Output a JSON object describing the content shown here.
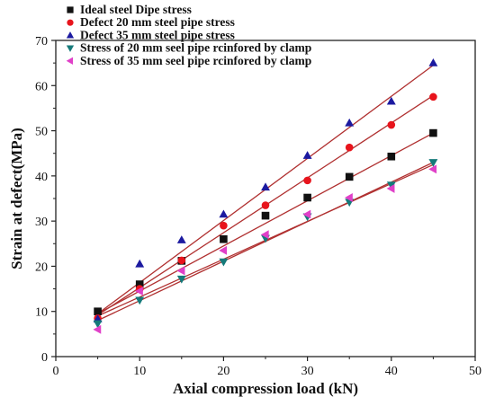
{
  "chart_data": {
    "type": "scatter",
    "title": "",
    "xlabel": "Axial compression load (kN)",
    "ylabel": "Strain at defect(MPa)",
    "xlim": [
      0,
      50
    ],
    "ylim": [
      0,
      70
    ],
    "x_ticks": [
      0,
      10,
      20,
      30,
      40,
      50
    ],
    "y_ticks": [
      0,
      10,
      20,
      30,
      40,
      50,
      60,
      70
    ],
    "grid": false,
    "legend_position": "top-left",
    "fit_line_color": "#b03030",
    "x": [
      5,
      10,
      15,
      20,
      25,
      30,
      35,
      40,
      45
    ],
    "series": [
      {
        "name": "Ideal steel Dipe stress",
        "marker": "square",
        "color": "#111111",
        "values": [
          10,
          16,
          21.2,
          26,
          31.2,
          35.2,
          39.8,
          44.3,
          49.5
        ],
        "fit": [
          9.5,
          49.5
        ]
      },
      {
        "name": "Defect 20 mm steel pipe stress",
        "marker": "circle",
        "color": "#e8141c",
        "values": [
          8.5,
          15,
          21.3,
          29,
          33.5,
          39,
          46.3,
          51.3,
          57.5
        ],
        "fit": [
          9.2,
          57.8
        ]
      },
      {
        "name": "Defect 35 mm steel pipe stress",
        "marker": "triangle-up",
        "color": "#1c1aa0",
        "values": [
          8.3,
          20.5,
          25.8,
          31.5,
          37.5,
          44.5,
          51.7,
          56.5,
          65
        ],
        "fit": [
          9.5,
          64.5
        ]
      },
      {
        "name": "Stress of 20 mm seel pipe rcinfored by clamp",
        "marker": "triangle-down",
        "color": "#157a7a",
        "values": [
          7.3,
          12.5,
          17.2,
          21,
          26.2,
          31,
          34.2,
          38,
          43
        ],
        "fit": [
          8,
          43
        ]
      },
      {
        "name": "Stress of 35 mm seel pipe rcinfored by clamp",
        "marker": "triangle-left",
        "color": "#e040c8",
        "values": [
          6,
          14.5,
          19,
          23.5,
          27,
          31.5,
          35.2,
          37.2,
          41.5
        ],
        "fit": [
          9,
          42.5
        ]
      }
    ]
  }
}
